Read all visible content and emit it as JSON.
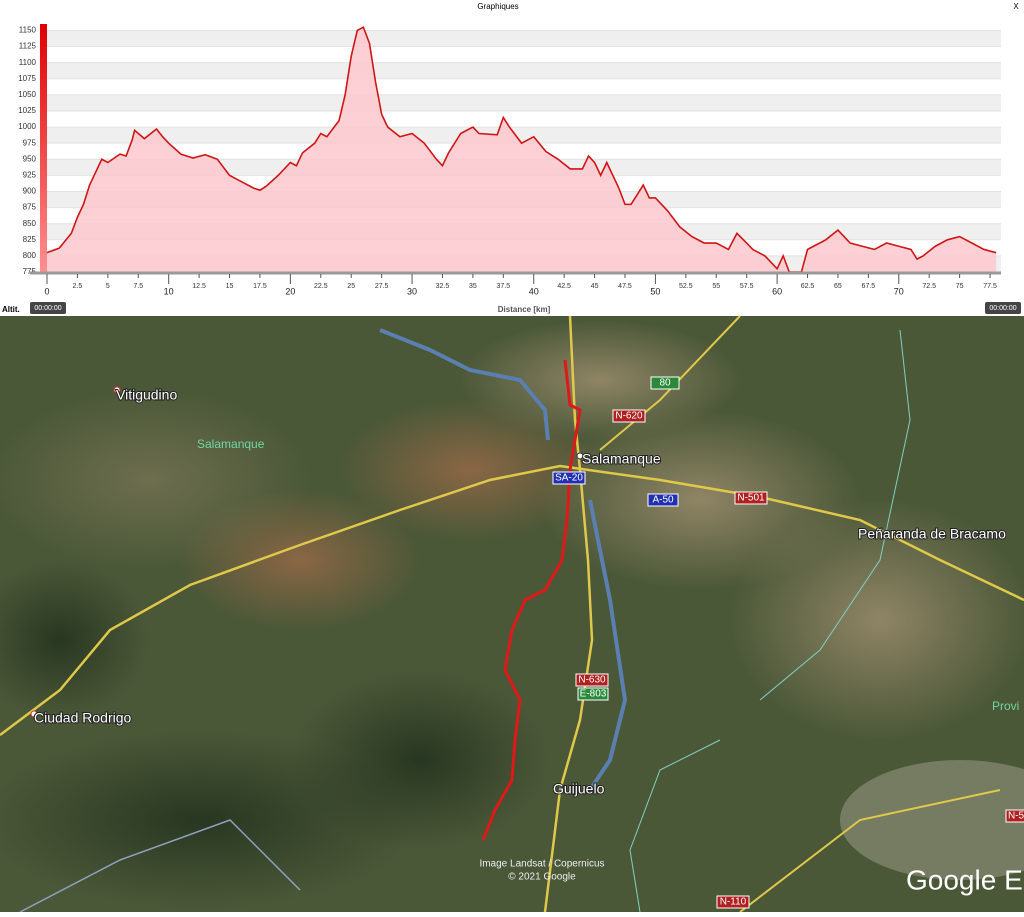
{
  "window": {
    "title": "Graphiques",
    "close": "X"
  },
  "chart_data": {
    "type": "area",
    "y_label": "Altit.",
    "x_label": "Distance [km]",
    "time_start": "00:00:00",
    "time_end": "00:00:00",
    "color": "#d01515",
    "fill": "#fbc8cc",
    "x": [
      0,
      1,
      2,
      2.5,
      3,
      3.5,
      4,
      4.5,
      5,
      6,
      6.5,
      7,
      7.2,
      8,
      9,
      9.5,
      10,
      11,
      12,
      13,
      14,
      15,
      16,
      17,
      17.5,
      18,
      19,
      20,
      20.5,
      21,
      22,
      22.5,
      23,
      24,
      24.5,
      25,
      25.5,
      26,
      26.5,
      27,
      27.5,
      28,
      29,
      30,
      31,
      32,
      32.5,
      33,
      34,
      35,
      35.5,
      37,
      37.5,
      38,
      39,
      40,
      41,
      42,
      43,
      44,
      44.5,
      45,
      45.5,
      46,
      47,
      47.5,
      48,
      49,
      49.5,
      50,
      51,
      52,
      53,
      54,
      55,
      56,
      56.7,
      57.5,
      58,
      59,
      59.5,
      60,
      60.5,
      61,
      62,
      62.5,
      63,
      64,
      65,
      66,
      67,
      68,
      69,
      70,
      71,
      71.5,
      72,
      73,
      74,
      75,
      76,
      77,
      78
    ],
    "values": [
      805,
      812,
      835,
      860,
      880,
      910,
      930,
      950,
      945,
      958,
      955,
      980,
      995,
      982,
      997,
      985,
      975,
      958,
      952,
      957,
      950,
      925,
      915,
      905,
      902,
      908,
      925,
      945,
      940,
      960,
      975,
      990,
      985,
      1010,
      1050,
      1110,
      1150,
      1155,
      1130,
      1070,
      1020,
      1000,
      985,
      990,
      975,
      950,
      940,
      960,
      990,
      1000,
      990,
      988,
      1015,
      1000,
      975,
      985,
      962,
      950,
      935,
      935,
      955,
      945,
      925,
      945,
      905,
      880,
      880,
      910,
      890,
      890,
      870,
      845,
      830,
      820,
      820,
      810,
      835,
      820,
      810,
      800,
      790,
      780,
      800,
      775,
      775,
      810,
      815,
      825,
      840,
      820,
      815,
      810,
      820,
      815,
      810,
      795,
      800,
      815,
      825,
      830,
      820,
      810,
      805
    ],
    "xlim": [
      0,
      78.4
    ],
    "ylim": [
      775,
      1160
    ],
    "xticks": [
      0,
      2.5,
      5,
      7.5,
      10,
      12.5,
      15,
      17.5,
      20,
      22.5,
      25,
      27.5,
      30,
      32.5,
      35,
      37.5,
      40,
      42.5,
      45,
      47.5,
      50,
      52.5,
      55,
      57.5,
      60,
      62.5,
      65,
      67.5,
      70,
      72.5,
      75,
      77.5
    ],
    "yticks": [
      775,
      800,
      825,
      850,
      875,
      900,
      925,
      950,
      975,
      1000,
      1025,
      1050,
      1075,
      1100,
      1125,
      1150
    ],
    "grid": true
  },
  "map": {
    "places": [
      "Vitigudino",
      "Salamanque",
      "Salamanque",
      "Peñaranda de Bracamo",
      "Ciudad Rodrigo",
      "Guijuelo",
      "Provi"
    ],
    "roads": [
      "80",
      "N-620",
      "SA-20",
      "A-50",
      "N-501",
      "N-630",
      "E-803",
      "N-110",
      "N-5"
    ],
    "attribution": [
      "Image Landsat / Copernicus",
      "© 2021 Google"
    ],
    "logo": "Google E"
  }
}
